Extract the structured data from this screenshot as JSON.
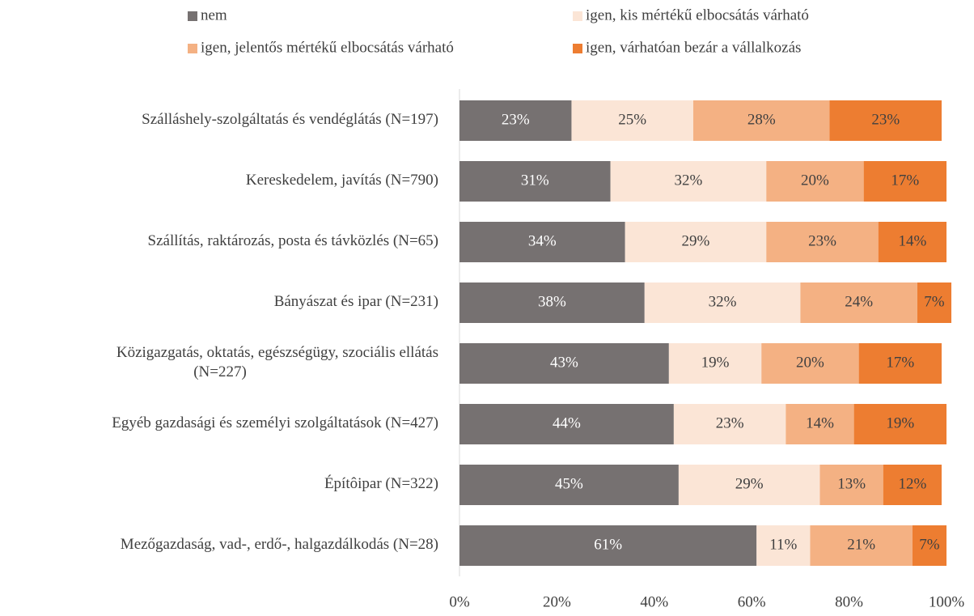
{
  "chart_data": {
    "type": "stacked-barh",
    "categories": [
      "Szálláshely-szolgáltatás és vendéglátás (N=197)",
      "Kereskedelem, javítás (N=790)",
      "Szállítás, raktározás, posta és távközlés (N=65)",
      "Bányászat és ipar (N=231)",
      "Közigazgatás, oktatás, egészségügy, szociális ellátás\n(N=227)",
      "Egyéb gazdasági és személyi szolgáltatások (N=427)",
      "Építôipar (N=322)",
      "Mezőgazdaság, vad-, erdő-, halgazdálkodás (N=28)"
    ],
    "series": [
      {
        "name": "nem",
        "color": "#767171",
        "values": [
          23,
          31,
          34,
          38,
          43,
          44,
          45,
          61
        ],
        "value_labels": [
          "23%",
          "31%",
          "34%",
          "38%",
          "43%",
          "44%",
          "45%",
          "61%"
        ]
      },
      {
        "name": "igen, kis mértékű elbocsátás várható",
        "color": "#fbe5d6",
        "values": [
          25,
          32,
          29,
          32,
          19,
          23,
          29,
          11
        ],
        "value_labels": [
          "25%",
          "32%",
          "29%",
          "32%",
          "19%",
          "23%",
          "29%",
          "11%"
        ]
      },
      {
        "name": "igen, jelentős mértékű elbocsátás várható",
        "color": "#f4b183",
        "values": [
          28,
          20,
          23,
          24,
          20,
          14,
          13,
          21
        ],
        "value_labels": [
          "28%",
          "20%",
          "23%",
          "24%",
          "20%",
          "14%",
          "13%",
          "21%"
        ]
      },
      {
        "name": "igen, várhatóan bezár a vállalkozás",
        "color": "#ed7d31",
        "values": [
          23,
          17,
          14,
          7,
          17,
          19,
          12,
          7
        ],
        "value_labels": [
          "23%",
          "17%",
          "14%",
          "7%",
          "17%",
          "19%",
          "12%",
          "7%"
        ]
      }
    ],
    "xlim": [
      0,
      100
    ],
    "xticks": [
      {
        "value": 0,
        "label": "0%"
      },
      {
        "value": 20,
        "label": "20%"
      },
      {
        "value": 40,
        "label": "40%"
      },
      {
        "value": 60,
        "label": "60%"
      },
      {
        "value": 80,
        "label": "80%"
      },
      {
        "value": 100,
        "label": "100%"
      }
    ],
    "legend": "top"
  }
}
